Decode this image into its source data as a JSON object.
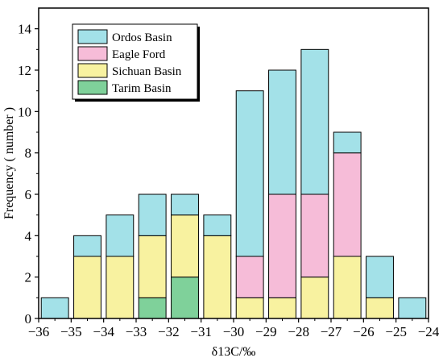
{
  "chart_data": {
    "type": "bar",
    "stacked": true,
    "xlabel": "δ13C/‰",
    "ylabel": "Frequency ( number )",
    "xlim": [
      -36,
      -24
    ],
    "ylim": [
      0,
      15
    ],
    "x_ticks": [
      -36,
      -35,
      -34,
      -33,
      -32,
      -31,
      -30,
      -29,
      -28,
      -27,
      -26,
      -25,
      -24
    ],
    "y_ticks": [
      0,
      2,
      4,
      6,
      8,
      10,
      12,
      14
    ],
    "bin_width": 1,
    "bins": [
      -35.5,
      -34.5,
      -33.5,
      -32.5,
      -31.5,
      -30.5,
      -29.5,
      -28.5,
      -27.5,
      -26.5,
      -25.5,
      -24.5
    ],
    "legend_position": "top-left",
    "grid": false,
    "series": [
      {
        "name": "Tarim Basin",
        "color": "#7fd19a",
        "values": [
          0,
          0,
          0,
          1,
          2,
          0,
          0,
          0,
          0,
          0,
          0,
          0
        ]
      },
      {
        "name": "Sichuan Basin",
        "color": "#f8f2a0",
        "values": [
          0,
          3,
          3,
          3,
          3,
          4,
          1,
          1,
          2,
          3,
          1,
          0
        ]
      },
      {
        "name": "Eagle  Ford",
        "color": "#f6bcd8",
        "values": [
          0,
          0,
          0,
          0,
          0,
          0,
          2,
          5,
          4,
          5,
          0,
          0
        ]
      },
      {
        "name": "Ordos Basin",
        "color": "#a3e1e8",
        "values": [
          1,
          1,
          2,
          2,
          1,
          1,
          8,
          6,
          7,
          1,
          2,
          1
        ]
      }
    ],
    "legend_order": [
      "Ordos Basin",
      "Eagle  Ford",
      "Sichuan Basin",
      "Tarim Basin"
    ]
  }
}
